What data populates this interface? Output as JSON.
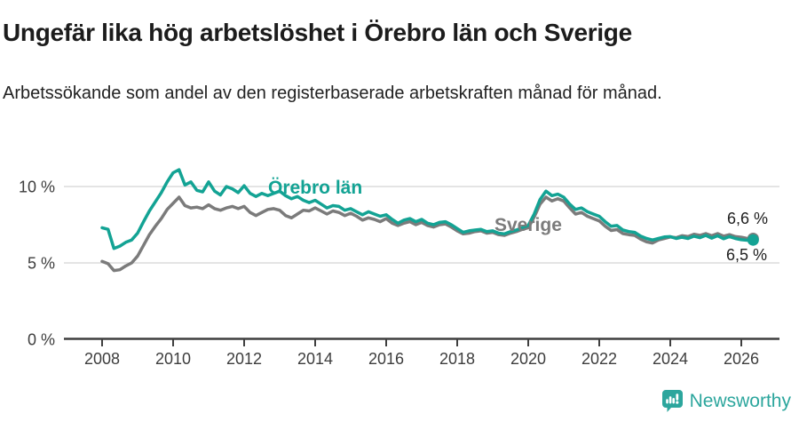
{
  "header": {
    "title": "Ungefär lika hög arbetslöshet i Örebro län och Sverige",
    "subtitle": "Arbetssökande som andel av den registerbaserade arbetskraften månad för månad."
  },
  "chart_data": {
    "type": "line",
    "title": "Ungefär lika hög arbetslöshet i Örebro län och Sverige",
    "xlabel": "",
    "ylabel": "",
    "unit": "%",
    "xlim": [
      2008,
      2026.5
    ],
    "ylim": [
      0,
      11.8
    ],
    "grid": "horizontal",
    "legend_position": "inline-labels",
    "x_start": 2008.0,
    "x_step_months": 2,
    "x_ticks": [
      {
        "year": 2008,
        "label": "2008"
      },
      {
        "year": 2010,
        "label": "2010"
      },
      {
        "year": 2012,
        "label": "2012"
      },
      {
        "year": 2014,
        "label": "2014"
      },
      {
        "year": 2016,
        "label": "2016"
      },
      {
        "year": 2018,
        "label": "2018"
      },
      {
        "year": 2020,
        "label": "2020"
      },
      {
        "year": 2022,
        "label": "2022"
      },
      {
        "year": 2024,
        "label": "2024"
      },
      {
        "year": 2026,
        "label": "2026"
      }
    ],
    "y_ticks": [
      {
        "value": 0,
        "label": "0 %"
      },
      {
        "value": 5,
        "label": "5 %"
      },
      {
        "value": 10,
        "label": "10 %"
      }
    ],
    "series": [
      {
        "name": "Örebro län",
        "color": "#13a394",
        "end_label": "6,5 %",
        "end_value": 6.5,
        "values": [
          7.3,
          7.2,
          5.95,
          6.1,
          6.35,
          6.5,
          6.95,
          7.7,
          8.4,
          9.0,
          9.6,
          10.3,
          10.9,
          11.1,
          10.1,
          10.3,
          9.75,
          9.65,
          10.3,
          9.7,
          9.45,
          10.0,
          9.85,
          9.6,
          10.05,
          9.55,
          9.35,
          9.55,
          9.4,
          9.55,
          9.7,
          9.4,
          9.2,
          9.35,
          9.1,
          8.95,
          9.1,
          8.85,
          8.6,
          8.75,
          8.7,
          8.45,
          8.55,
          8.35,
          8.15,
          8.35,
          8.2,
          8.05,
          8.15,
          7.85,
          7.6,
          7.8,
          7.9,
          7.7,
          7.85,
          7.6,
          7.5,
          7.65,
          7.7,
          7.5,
          7.25,
          7.0,
          7.1,
          7.15,
          7.2,
          7.05,
          7.1,
          6.95,
          6.9,
          7.05,
          7.15,
          7.3,
          7.45,
          8.2,
          9.15,
          9.7,
          9.4,
          9.5,
          9.3,
          8.85,
          8.5,
          8.6,
          8.35,
          8.2,
          8.05,
          7.7,
          7.4,
          7.45,
          7.15,
          7.05,
          7.0,
          6.75,
          6.6,
          6.5,
          6.6,
          6.7,
          6.72,
          6.6,
          6.68,
          6.6,
          6.75,
          6.65,
          6.8,
          6.62,
          6.78,
          6.58,
          6.72,
          6.6,
          6.52,
          6.48,
          6.5
        ]
      },
      {
        "name": "Sverige",
        "color": "#7b7b7b",
        "end_label": "6,6 %",
        "end_value": 6.6,
        "values": [
          5.1,
          4.95,
          4.5,
          4.55,
          4.8,
          5.0,
          5.45,
          6.15,
          6.85,
          7.4,
          7.9,
          8.5,
          8.9,
          9.3,
          8.75,
          8.6,
          8.65,
          8.55,
          8.8,
          8.55,
          8.45,
          8.6,
          8.7,
          8.55,
          8.7,
          8.3,
          8.1,
          8.3,
          8.5,
          8.55,
          8.45,
          8.1,
          7.95,
          8.2,
          8.45,
          8.4,
          8.6,
          8.4,
          8.2,
          8.4,
          8.3,
          8.1,
          8.25,
          8.05,
          7.8,
          7.95,
          7.85,
          7.7,
          7.9,
          7.6,
          7.45,
          7.6,
          7.7,
          7.5,
          7.65,
          7.45,
          7.35,
          7.5,
          7.55,
          7.35,
          7.1,
          6.9,
          6.95,
          7.05,
          7.1,
          6.95,
          7.0,
          6.85,
          6.8,
          6.95,
          7.05,
          7.2,
          7.3,
          8.0,
          8.85,
          9.3,
          9.05,
          9.2,
          9.05,
          8.6,
          8.2,
          8.3,
          8.05,
          7.9,
          7.75,
          7.4,
          7.12,
          7.18,
          6.92,
          6.85,
          6.8,
          6.55,
          6.38,
          6.3,
          6.5,
          6.6,
          6.7,
          6.65,
          6.78,
          6.72,
          6.88,
          6.8,
          6.92,
          6.78,
          6.92,
          6.75,
          6.85,
          6.72,
          6.68,
          6.6,
          6.6
        ]
      }
    ]
  },
  "colors": {
    "accent_teal": "#13a394",
    "series_gray": "#7b7b7b",
    "gridline": "#dbdbdb",
    "axis": "#3f3f3f"
  },
  "footer": {
    "brand": "Newsworthy"
  }
}
